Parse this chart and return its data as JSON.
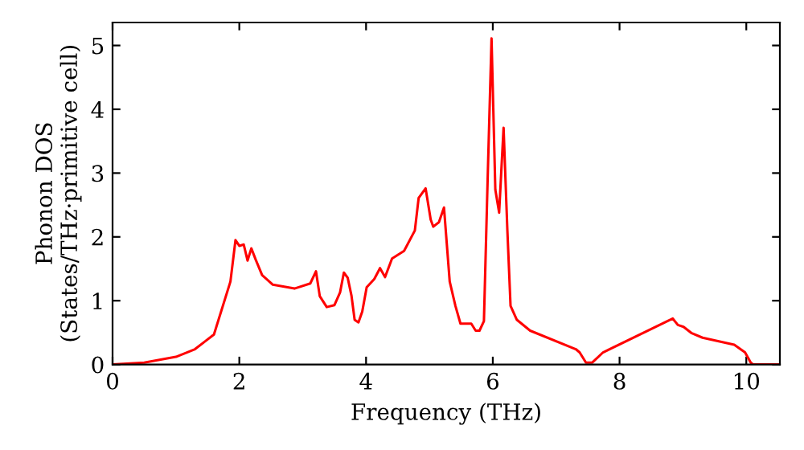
{
  "chart_data": {
    "type": "line",
    "xlabel": "Frequency (THz)",
    "ylabel": "Phonon DOS\n(States/THz·primitive cell)",
    "xlim": [
      0,
      10.53
    ],
    "ylim": [
      0,
      5.36
    ],
    "xticks": [
      0,
      2,
      4,
      6,
      8,
      10
    ],
    "yticks": [
      0,
      1,
      2,
      3,
      4,
      5
    ],
    "grid": false,
    "legend": false,
    "marker": "none",
    "line_style": "solid",
    "series": [
      {
        "color": "#ff0000",
        "x": [
          0,
          0.5,
          1.0,
          1.3,
          1.6,
          1.86,
          1.94,
          2.0,
          2.07,
          2.13,
          2.19,
          2.26,
          2.36,
          2.53,
          2.87,
          3.12,
          3.21,
          3.27,
          3.38,
          3.5,
          3.59,
          3.65,
          3.71,
          3.77,
          3.82,
          3.88,
          3.94,
          4.01,
          4.13,
          4.22,
          4.3,
          4.41,
          4.6,
          4.77,
          4.83,
          4.94,
          5.02,
          5.06,
          5.15,
          5.23,
          5.32,
          5.41,
          5.49,
          5.66,
          5.73,
          5.79,
          5.86,
          5.92,
          5.98,
          6.04,
          6.1,
          6.17,
          6.23,
          6.28,
          6.38,
          6.59,
          7.31,
          7.37,
          7.47,
          7.57,
          7.74,
          8.84,
          8.92,
          9.01,
          9.14,
          9.31,
          9.81,
          9.98,
          10.07,
          10.11,
          10.53
        ],
        "values": [
          0,
          0.03,
          0.12,
          0.24,
          0.47,
          1.3,
          1.95,
          1.86,
          1.88,
          1.63,
          1.82,
          1.64,
          1.4,
          1.25,
          1.19,
          1.27,
          1.46,
          1.07,
          0.9,
          0.93,
          1.13,
          1.44,
          1.36,
          1.08,
          0.7,
          0.66,
          0.83,
          1.21,
          1.34,
          1.51,
          1.37,
          1.66,
          1.78,
          2.1,
          2.61,
          2.76,
          2.27,
          2.16,
          2.23,
          2.46,
          1.3,
          0.92,
          0.64,
          0.64,
          0.53,
          0.53,
          0.68,
          2.95,
          5.11,
          2.74,
          2.38,
          3.71,
          2.1,
          0.92,
          0.7,
          0.53,
          0.24,
          0.19,
          0.03,
          0.03,
          0.19,
          0.72,
          0.62,
          0.59,
          0.49,
          0.42,
          0.31,
          0.19,
          0.03,
          0,
          0
        ]
      }
    ]
  }
}
